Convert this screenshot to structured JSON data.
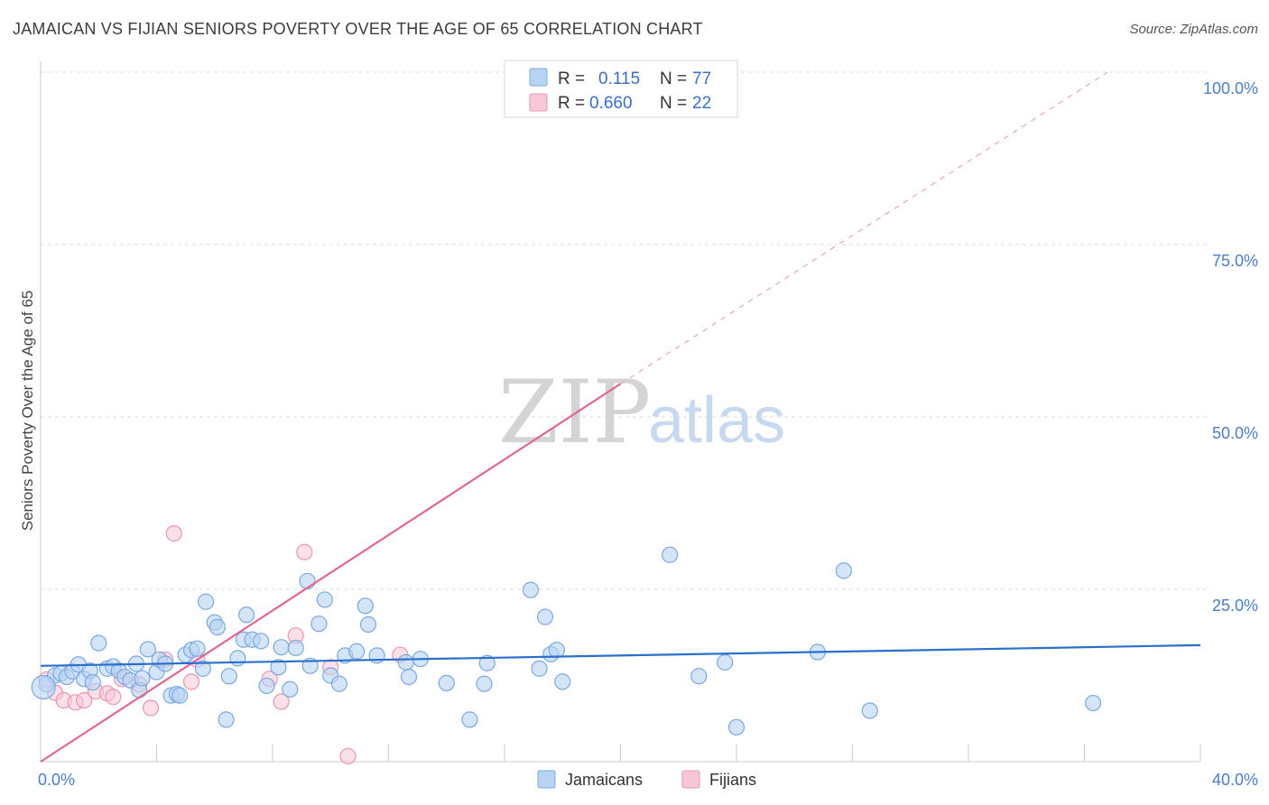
{
  "title": "JAMAICAN VS FIJIAN SENIORS POVERTY OVER THE AGE OF 65 CORRELATION CHART",
  "source": "Source: ZipAtlas.com",
  "colors": {
    "jamaicans_fill": "#b9d3f3",
    "jamaicans_stroke": "#7aa8e0",
    "jamaicans_line": "#2a6fcc",
    "fijians_fill": "#f8c7d6",
    "fijians_stroke": "#e897b0",
    "fijians_line": "#e06890",
    "grid": "#d9d9d9"
  },
  "legend": {
    "r_label": "R =",
    "n_label": "N =",
    "jamaicans_r": "0.115",
    "jamaicans_n": "77",
    "fijians_r": "0.660",
    "fijians_n": "22"
  },
  "watermark": {
    "zip": "ZIP",
    "atlas": "atlas"
  },
  "chart_data": {
    "type": "scatter",
    "ylabel": "Seniors Poverty Over the Age of 65",
    "xlim": [
      0,
      40
    ],
    "ylim": [
      0,
      100
    ],
    "x_tick_labels": [
      "0.0%",
      "40.0%"
    ],
    "y_tick_labels": [
      "100.0%",
      "75.0%",
      "50.0%",
      "25.0%"
    ],
    "y_ticks": [
      100,
      75,
      50,
      25
    ],
    "grid": "horizontal dashed",
    "legend_position": "top-center",
    "series": [
      {
        "name": "Jamaicans",
        "trend": {
          "x": [
            0,
            40
          ],
          "y": [
            13.9,
            16.9
          ]
        },
        "points": [
          [
            0.2,
            11.2
          ],
          [
            0.5,
            12.5
          ],
          [
            0.7,
            12.8
          ],
          [
            0.9,
            12.3
          ],
          [
            1.1,
            13.1
          ],
          [
            1.3,
            14.1
          ],
          [
            1.5,
            12.0
          ],
          [
            1.7,
            13.2
          ],
          [
            1.8,
            11.5
          ],
          [
            2.0,
            17.2
          ],
          [
            2.3,
            13.5
          ],
          [
            2.5,
            13.8
          ],
          [
            2.7,
            13.2
          ],
          [
            2.9,
            12.3
          ],
          [
            3.1,
            11.8
          ],
          [
            3.3,
            14.2
          ],
          [
            3.4,
            10.4
          ],
          [
            3.5,
            12.1
          ],
          [
            3.7,
            16.3
          ],
          [
            4.0,
            13.0
          ],
          [
            4.1,
            14.8
          ],
          [
            4.3,
            14.2
          ],
          [
            4.5,
            9.6
          ],
          [
            4.7,
            9.8
          ],
          [
            4.8,
            9.6
          ],
          [
            5.0,
            15.5
          ],
          [
            5.2,
            16.2
          ],
          [
            5.4,
            16.4
          ],
          [
            5.6,
            13.5
          ],
          [
            5.7,
            23.2
          ],
          [
            6.0,
            20.2
          ],
          [
            6.1,
            19.5
          ],
          [
            6.4,
            6.1
          ],
          [
            6.5,
            12.4
          ],
          [
            6.8,
            15.0
          ],
          [
            7.0,
            17.7
          ],
          [
            7.1,
            21.3
          ],
          [
            7.3,
            17.7
          ],
          [
            7.6,
            17.5
          ],
          [
            7.8,
            11.0
          ],
          [
            8.2,
            13.7
          ],
          [
            8.3,
            16.6
          ],
          [
            8.6,
            10.5
          ],
          [
            8.8,
            16.5
          ],
          [
            9.2,
            26.2
          ],
          [
            9.3,
            13.9
          ],
          [
            9.6,
            20.0
          ],
          [
            9.8,
            23.5
          ],
          [
            10.0,
            12.5
          ],
          [
            10.3,
            11.3
          ],
          [
            10.5,
            15.4
          ],
          [
            10.9,
            16.0
          ],
          [
            11.2,
            22.6
          ],
          [
            11.3,
            19.9
          ],
          [
            11.6,
            15.4
          ],
          [
            12.6,
            14.4
          ],
          [
            12.7,
            12.3
          ],
          [
            13.1,
            14.9
          ],
          [
            14.0,
            11.4
          ],
          [
            14.8,
            6.1
          ],
          [
            15.3,
            11.3
          ],
          [
            15.4,
            14.3
          ],
          [
            16.9,
            24.9
          ],
          [
            17.2,
            13.5
          ],
          [
            17.4,
            21.0
          ],
          [
            17.6,
            15.6
          ],
          [
            17.8,
            16.2
          ],
          [
            18.0,
            11.6
          ],
          [
            21.7,
            30.0
          ],
          [
            22.7,
            12.4
          ],
          [
            23.6,
            14.4
          ],
          [
            24.0,
            5.0
          ],
          [
            26.8,
            15.9
          ],
          [
            27.7,
            27.7
          ],
          [
            28.6,
            7.4
          ],
          [
            36.3,
            8.5
          ],
          [
            0.1,
            10.8
          ]
        ]
      },
      {
        "name": "Fijians",
        "trend": {
          "x": [
            0,
            20
          ],
          "y": [
            0.0,
            54.8
          ]
        },
        "trend_extension": {
          "x": [
            20,
            36.8
          ],
          "y": [
            54.8,
            100
          ]
        },
        "points": [
          [
            0.2,
            11.9
          ],
          [
            0.5,
            10.0
          ],
          [
            0.8,
            8.9
          ],
          [
            1.2,
            8.6
          ],
          [
            1.5,
            8.9
          ],
          [
            1.9,
            10.2
          ],
          [
            2.3,
            9.9
          ],
          [
            2.5,
            9.4
          ],
          [
            2.8,
            12.0
          ],
          [
            3.4,
            11.2
          ],
          [
            3.8,
            7.8
          ],
          [
            4.3,
            14.8
          ],
          [
            4.6,
            33.1
          ],
          [
            5.2,
            11.6
          ],
          [
            5.4,
            14.8
          ],
          [
            7.9,
            12.0
          ],
          [
            8.3,
            8.7
          ],
          [
            8.8,
            18.3
          ],
          [
            9.1,
            30.4
          ],
          [
            10.0,
            13.7
          ],
          [
            12.4,
            15.5
          ],
          [
            10.6,
            0.8
          ]
        ]
      }
    ],
    "bottom_legend": [
      "Jamaicans",
      "Fijians"
    ]
  }
}
